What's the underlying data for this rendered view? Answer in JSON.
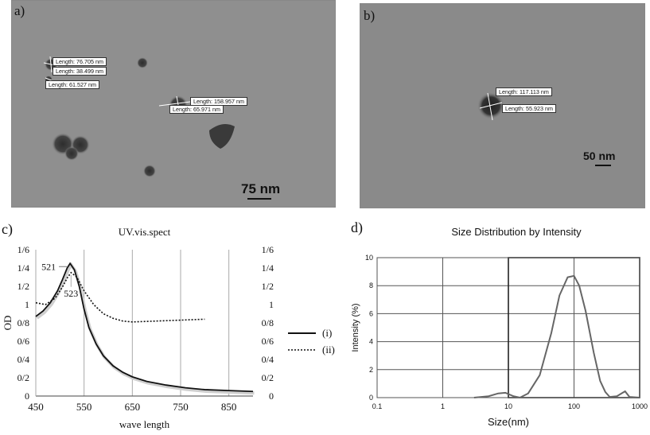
{
  "panel_a": {
    "letter": "a)",
    "scale_bar": "75 nm",
    "measurements": [
      "Length: 76.705 nm",
      "Length: 38.499 nm",
      "Length: 61.527 nm",
      "Length: 158.957 nm",
      "Length: 65.971 nm"
    ]
  },
  "panel_b": {
    "letter": "b)",
    "scale_bar": "50 nm",
    "measurements": [
      "Length: 117.113 nm",
      "Length: 55.923 nm"
    ]
  },
  "panel_c": {
    "letter": "c)"
  },
  "panel_d": {
    "letter": "d)"
  },
  "chart_data": [
    {
      "type": "line",
      "title": "UV.vis.spect",
      "xlabel": "wave length",
      "ylabel": "OD",
      "xlim": [
        450,
        900
      ],
      "ylim": [
        0,
        1.6
      ],
      "x_ticks": [
        "450",
        "550",
        "650",
        "750",
        "850"
      ],
      "y_ticks_left": [
        "0",
        "0/2",
        "0/4",
        "0/6",
        "0/8",
        "1",
        "1/2",
        "1/4",
        "1/6"
      ],
      "y_ticks_right": [
        "0",
        "0/2",
        "0/4",
        "0/6",
        "0/8",
        "1",
        "1/2",
        "1/4",
        "1/6"
      ],
      "annotations": [
        "521",
        "523"
      ],
      "series": [
        {
          "name": "(i)",
          "style": "solid",
          "x": [
            450,
            465,
            480,
            495,
            505,
            515,
            521,
            530,
            540,
            550,
            560,
            575,
            590,
            610,
            630,
            650,
            680,
            720,
            760,
            800,
            850,
            900
          ],
          "y": [
            0.87,
            0.93,
            1.02,
            1.15,
            1.27,
            1.4,
            1.45,
            1.38,
            1.2,
            0.95,
            0.75,
            0.57,
            0.44,
            0.33,
            0.26,
            0.21,
            0.16,
            0.12,
            0.09,
            0.07,
            0.06,
            0.05
          ]
        },
        {
          "name": "(ii)",
          "style": "dotted",
          "x": [
            450,
            470,
            490,
            505,
            515,
            523,
            535,
            550,
            570,
            590,
            610,
            630,
            650,
            700,
            750,
            800
          ],
          "y": [
            1.02,
            1.0,
            1.07,
            1.19,
            1.29,
            1.35,
            1.3,
            1.15,
            1.0,
            0.9,
            0.85,
            0.82,
            0.81,
            0.82,
            0.83,
            0.84
          ]
        }
      ]
    },
    {
      "type": "line",
      "title": "Size Distribution by Intensity",
      "xlabel": "Size(nm)",
      "ylabel": "Intensity (%)",
      "x_scale": "log",
      "xlim": [
        0.1,
        1000
      ],
      "ylim": [
        0,
        10
      ],
      "x_ticks": [
        "0.1",
        "1",
        "10",
        "100",
        "1000"
      ],
      "y_ticks": [
        "0",
        "2",
        "4",
        "6",
        "8",
        "10"
      ],
      "series": [
        {
          "name": "",
          "x": [
            3,
            5,
            7,
            9,
            12,
            15,
            20,
            30,
            45,
            60,
            80,
            100,
            120,
            150,
            200,
            250,
            300,
            350,
            450,
            550,
            600,
            700,
            1000
          ],
          "y": [
            0.0,
            0.1,
            0.3,
            0.35,
            0.1,
            0.0,
            0.3,
            1.6,
            4.6,
            7.3,
            8.6,
            8.7,
            8.0,
            6.2,
            3.2,
            1.2,
            0.4,
            0.05,
            0.1,
            0.35,
            0.45,
            0.05,
            0.0
          ]
        }
      ]
    }
  ]
}
